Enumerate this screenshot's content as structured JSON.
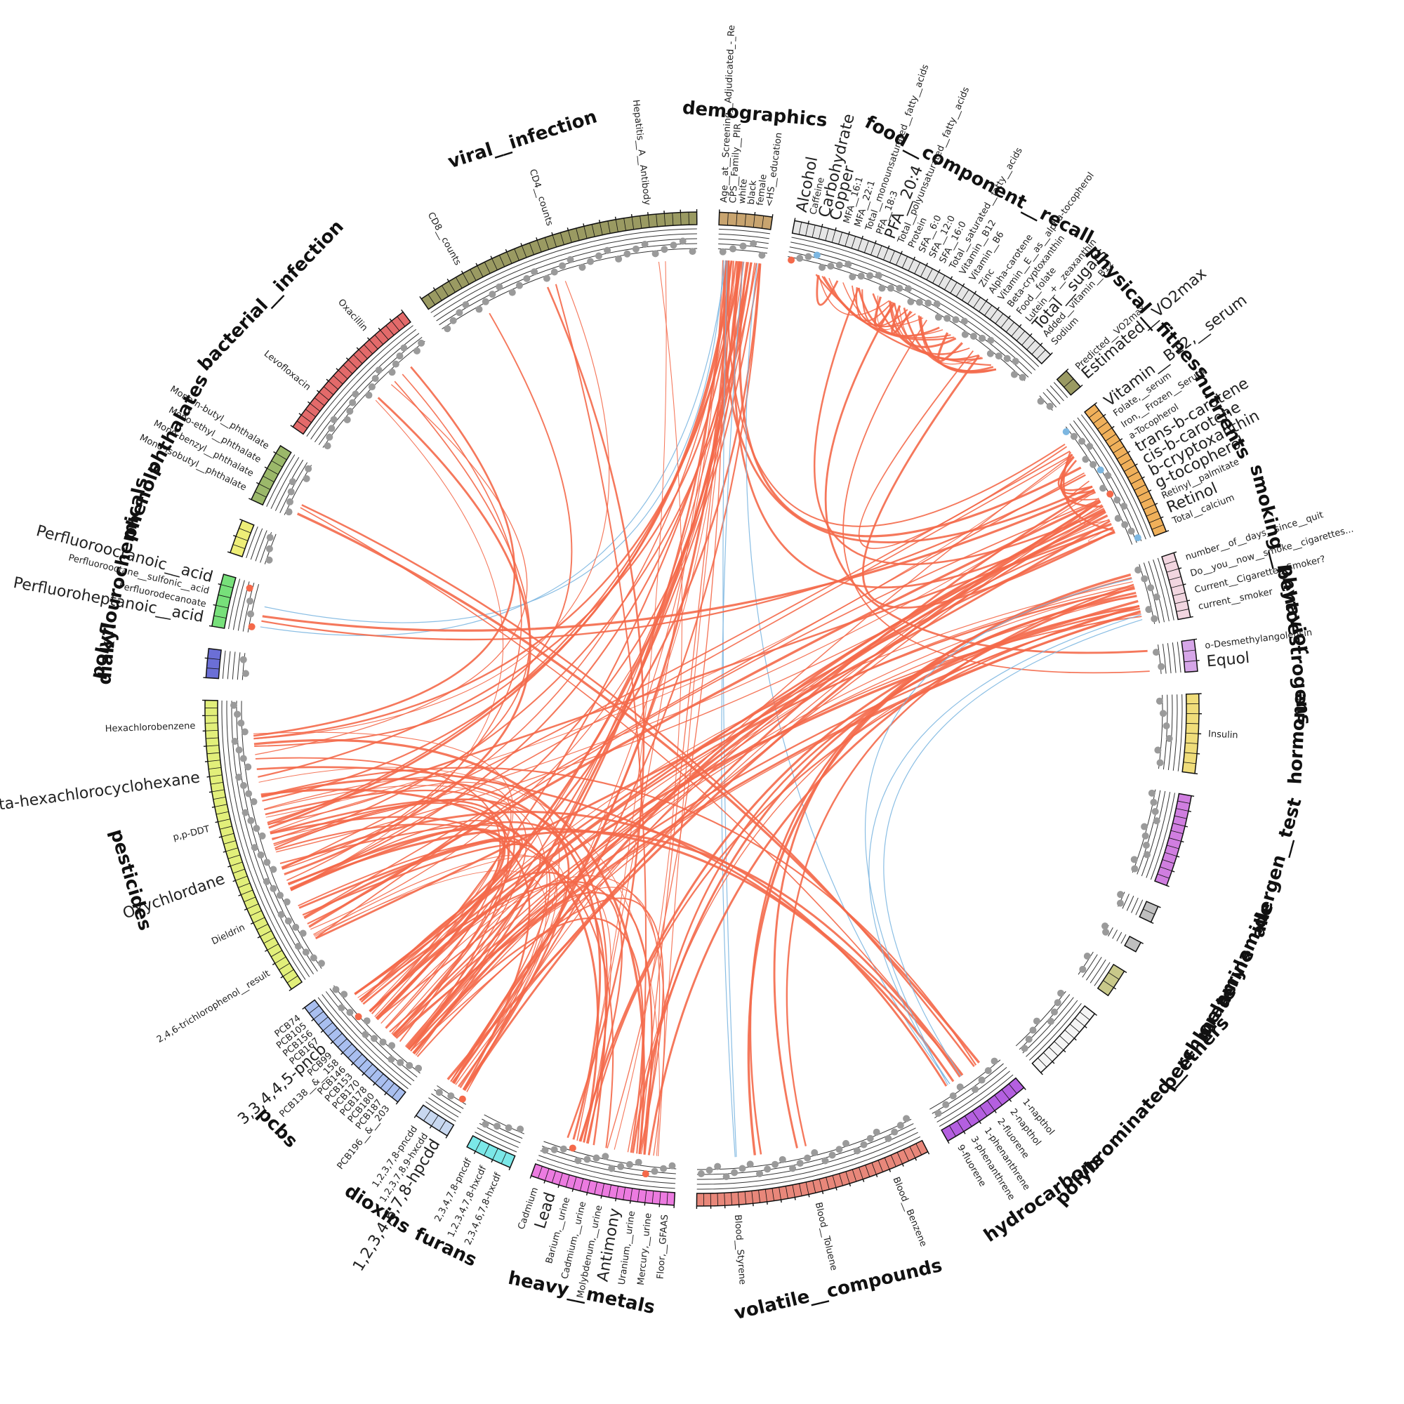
{
  "colors": {
    "positive": "#f4694a",
    "negative": "#7db7e1",
    "neutral_dot": "#9a9a9a",
    "axis": "#111111"
  },
  "groups": [
    {
      "name": "demographics",
      "color": "#c8a46f",
      "span": 4,
      "ticks": 6,
      "labels": [
        {
          "text": "Age__at__Screening__Adjudicated_-_Re",
          "color": "default"
        },
        {
          "text": "CPS__Family__PIR",
          "color": "default"
        },
        {
          "text": "white",
          "color": "default"
        },
        {
          "text": "black",
          "color": "default"
        },
        {
          "text": "female",
          "color": "default"
        },
        {
          "text": "<HS__education",
          "color": "default"
        }
      ]
    },
    {
      "name": "food__component__recall",
      "color": "#e6e6e6",
      "span": 22,
      "ticks": 42,
      "labels": [
        {
          "text": "Alcohol",
          "color": "positive"
        },
        {
          "text": "Caffeine",
          "color": "default"
        },
        {
          "text": "Carbohydrate",
          "color": "negative"
        },
        {
          "text": "Copper",
          "color": "negative"
        },
        {
          "text": "MFA__16:1",
          "color": "default"
        },
        {
          "text": "MFA__22:1",
          "color": "default"
        },
        {
          "text": "Total__monounsaturated__fatty__acids",
          "color": "default"
        },
        {
          "text": "PFA__18:3",
          "color": "default"
        },
        {
          "text": "PFA__20:4",
          "color": "positive"
        },
        {
          "text": "Total__polyunsaturated__fatty__acids",
          "color": "default"
        },
        {
          "text": "Protein",
          "color": "default"
        },
        {
          "text": "SFA__6:0",
          "color": "default"
        },
        {
          "text": "SFA__12:0",
          "color": "default"
        },
        {
          "text": "SFA__16:0",
          "color": "default"
        },
        {
          "text": "Total__saturated__fatty__acids",
          "color": "default"
        },
        {
          "text": "Vitamin__B12",
          "color": "default"
        },
        {
          "text": "Vitamin__B6",
          "color": "default"
        },
        {
          "text": "Zinc",
          "color": "default"
        },
        {
          "text": "Alpha-carotene",
          "color": "default"
        },
        {
          "text": "Vitamin__E__as__alpha-tocopherol",
          "color": "default"
        },
        {
          "text": "Beta-cryptoxanthin",
          "color": "default"
        },
        {
          "text": "Food__folate",
          "color": "default"
        },
        {
          "text": "Lutein__+__zeaxanthin",
          "color": "default"
        },
        {
          "text": "Total__sugars",
          "color": "negative"
        },
        {
          "text": "Added__vitamin__B12",
          "color": "default"
        },
        {
          "text": "Sodium",
          "color": "default"
        }
      ]
    },
    {
      "name": "physical__fitness",
      "color": "#9a9a63",
      "span": 1.6,
      "ticks": 2,
      "labels": [
        {
          "text": "Predicted__VO2max",
          "color": "default"
        },
        {
          "text": "Estimated__VO2max",
          "color": "negative"
        }
      ]
    },
    {
      "name": "nutrients",
      "color": "#f0b05a",
      "span": 11,
      "ticks": 20,
      "labels": [
        {
          "text": "Vitamin__B12,__serum",
          "color": "negative"
        },
        {
          "text": "Folate,__serum",
          "color": "default"
        },
        {
          "text": "Iron,__Frozen__Serum",
          "color": "default"
        },
        {
          "text": "a-Tocopherol",
          "color": "default"
        },
        {
          "text": "trans-b-carotene",
          "color": "negative"
        },
        {
          "text": "cis-b-carotene",
          "color": "negative"
        },
        {
          "text": "b-cryptoxanthin",
          "color": "negative"
        },
        {
          "text": "g-tocopherol",
          "color": "positive"
        },
        {
          "text": "Retinyl__palmitate",
          "color": "default"
        },
        {
          "text": "Retinol",
          "color": "positive"
        },
        {
          "text": "Total__calcium",
          "color": "default"
        }
      ]
    },
    {
      "name": "smoking__behavior",
      "color": "#f2d6e0",
      "span": 5,
      "ticks": 8,
      "labels": [
        {
          "text": "number__of__days__since__quit",
          "color": "default"
        },
        {
          "text": "Do__you__now__smoke__cigarettes...",
          "color": "default"
        },
        {
          "text": "Current__Cigarette__Smoker?",
          "color": "default"
        },
        {
          "text": "current__smoker",
          "color": "default"
        }
      ]
    },
    {
      "name": "phytoestrogens",
      "color": "#d6a6e8",
      "span": 2.4,
      "ticks": 3,
      "labels": [
        {
          "text": "o-Desmethylangolensin",
          "color": "default"
        },
        {
          "text": "Equol",
          "color": "negative"
        }
      ]
    },
    {
      "name": "hormone",
      "color": "#f0dd7a",
      "span": 6,
      "ticks": 8,
      "labels": [
        {
          "text": "Insulin",
          "color": "default"
        }
      ]
    },
    {
      "name": "allergen__test",
      "color": "#d07ee0",
      "span": 7,
      "ticks": 12,
      "labels": []
    },
    {
      "name": "acrylamide",
      "color": "#bfbfbf",
      "span": 1.3,
      "ticks": 2,
      "labels": []
    },
    {
      "name": "melamine",
      "color": "#bfbfbf",
      "span": 0.8,
      "ticks": 1,
      "labels": []
    },
    {
      "name": "perchlorate",
      "color": "#c9c98a",
      "span": 2.2,
      "ticks": 3,
      "labels": []
    },
    {
      "name": "polybrominated__ethers",
      "color": "#f5f5f5",
      "span": 6,
      "ticks": 10,
      "labels": []
    },
    {
      "name": "hydrocarbons",
      "color": "#b45fe0",
      "span": 7,
      "ticks": 10,
      "labels": [
        {
          "text": "1-napthol",
          "color": "default"
        },
        {
          "text": "2-napthol",
          "color": "default"
        },
        {
          "text": "2-fluorene",
          "color": "default"
        },
        {
          "text": "1-phenanthrene",
          "color": "default"
        },
        {
          "text": "3-phenanthrene",
          "color": "default"
        },
        {
          "text": "9-fluorene",
          "color": "default"
        }
      ]
    },
    {
      "name": "volatile__compounds",
      "color": "#e8877a",
      "span": 18,
      "ticks": 34,
      "labels": [
        {
          "text": "Blood__Benzene",
          "color": "default"
        },
        {
          "text": "Blood__Toluene",
          "color": "default"
        },
        {
          "text": "Blood__Styrene",
          "color": "default"
        }
      ]
    },
    {
      "name": "heavy__metals",
      "color": "#ec7be0",
      "span": 11,
      "ticks": 20,
      "labels": [
        {
          "text": "Floor,__GFAAS",
          "color": "default"
        },
        {
          "text": "Mercury,__urine",
          "color": "default"
        },
        {
          "text": "Uranium,__urine",
          "color": "default"
        },
        {
          "text": "Antimony",
          "color": "positive"
        },
        {
          "text": "Molybdenum,__urine",
          "color": "default"
        },
        {
          "text": "Cadmium,__urine",
          "color": "default"
        },
        {
          "text": "Barium,__urine",
          "color": "default"
        },
        {
          "text": "Lead",
          "color": "positive"
        },
        {
          "text": "Cadmium",
          "color": "default"
        }
      ]
    },
    {
      "name": "furans",
      "color": "#7be8e8",
      "span": 3.6,
      "ticks": 5,
      "labels": [
        {
          "text": "2,3,4,6,7,8-hxcdf",
          "color": "default"
        },
        {
          "text": "1,2,3,4,7,8-hxcdf",
          "color": "default"
        },
        {
          "text": "2,3,4,7,8-pncdf",
          "color": "default"
        }
      ]
    },
    {
      "name": "dioxins",
      "color": "#c8d8f0",
      "span": 2.8,
      "ticks": 4,
      "labels": [
        {
          "text": "1,2,3,4,6,7,8-hpcdd",
          "color": "positive"
        },
        {
          "text": "1,2,3,7,8,9-hxcdd",
          "color": "default"
        },
        {
          "text": "1,2,3,7,8-pncdd",
          "color": "default"
        }
      ]
    },
    {
      "name": "pcbs",
      "color": "#a9bff0",
      "span": 10,
      "ticks": 18,
      "labels": [
        {
          "text": "PCB196__&__203",
          "color": "default"
        },
        {
          "text": "PCB187",
          "color": "default"
        },
        {
          "text": "PCB180",
          "color": "default"
        },
        {
          "text": "PCB178",
          "color": "default"
        },
        {
          "text": "PCB170",
          "color": "default"
        },
        {
          "text": "PCB153",
          "color": "default"
        },
        {
          "text": "PCB146",
          "color": "default"
        },
        {
          "text": "PCB138__&__158",
          "color": "default"
        },
        {
          "text": "PCB99",
          "color": "default"
        },
        {
          "text": "3,3,4,4,5-pncb",
          "color": "positive"
        },
        {
          "text": "PCB167",
          "color": "default"
        },
        {
          "text": "PCB156",
          "color": "default"
        },
        {
          "text": "PCB105",
          "color": "default"
        },
        {
          "text": "PCB74",
          "color": "default"
        }
      ]
    },
    {
      "name": "pesticides",
      "color": "#e2ef7a",
      "span": 23,
      "ticks": 40,
      "labels": [
        {
          "text": "2,4,6-trichlorophenol__result",
          "color": "default"
        },
        {
          "text": "Dieldrin",
          "color": "default"
        },
        {
          "text": "Oxychlordane",
          "color": "positive"
        },
        {
          "text": "p,p-DDT",
          "color": "default"
        },
        {
          "text": "Beta-hexachlorocyclohexane",
          "color": "positive"
        },
        {
          "text": "Hexachlorobenzene",
          "color": "default"
        }
      ]
    },
    {
      "name": "diakyl",
      "color": "#6b6fd6",
      "span": 2.2,
      "ticks": 3,
      "labels": []
    },
    {
      "name": "polyflourochemicals",
      "color": "#77e07a",
      "span": 4,
      "ticks": 5,
      "labels": [
        {
          "text": "Perfluoroheptanoic__acid",
          "color": "positive"
        },
        {
          "text": "Perfluorodecanoate",
          "color": "default"
        },
        {
          "text": "Perfluorooctane__sulfonic__acid",
          "color": "default"
        },
        {
          "text": "Perfluorooctanoic__acid",
          "color": "positive"
        }
      ]
    },
    {
      "name": "phenols",
      "color": "#eeee77",
      "span": 2.6,
      "ticks": 4,
      "labels": []
    },
    {
      "name": "phthalates",
      "color": "#9bb86a",
      "span": 4.6,
      "ticks": 7,
      "labels": [
        {
          "text": "Mono-isobutyl__phthalate",
          "color": "default"
        },
        {
          "text": "Mono-benzyl__phthalate",
          "color": "default"
        },
        {
          "text": "Mono-ethyl__phthalate",
          "color": "default"
        },
        {
          "text": "Mono-n-butyl__phthalate",
          "color": "default"
        }
      ]
    },
    {
      "name": "bacterial__infection",
      "color": "#e36a6a",
      "span": 12,
      "ticks": 22,
      "labels": [
        {
          "text": "Levofloxacin",
          "color": "default"
        },
        {
          "text": "Oxacillin",
          "color": "default"
        }
      ]
    },
    {
      "name": "viral__infection",
      "color": "#9a9a62",
      "span": 22,
      "ticks": 36,
      "labels": [
        {
          "text": "CD8__counts",
          "color": "default"
        },
        {
          "text": "CD4__counts",
          "color": "default"
        },
        {
          "text": "Hepatitis__A__Antibody",
          "color": "default"
        }
      ]
    }
  ],
  "links": [
    {
      "from": "demographics",
      "to": "pesticides",
      "sign": "positive",
      "count": 10
    },
    {
      "from": "demographics",
      "to": "pcbs",
      "sign": "positive",
      "count": 8
    },
    {
      "from": "demographics",
      "to": "dioxins",
      "sign": "positive",
      "count": 4
    },
    {
      "from": "demographics",
      "to": "heavy__metals",
      "sign": "positive",
      "count": 4
    },
    {
      "from": "demographics",
      "to": "nutrients",
      "sign": "positive",
      "count": 4
    },
    {
      "from": "demographics",
      "to": "polyflourochemicals",
      "sign": "negative",
      "count": 2
    },
    {
      "from": "demographics",
      "to": "volatile__compounds",
      "sign": "negative",
      "count": 2
    },
    {
      "from": "demographics",
      "to": "hydrocarbons",
      "sign": "negative",
      "count": 1
    },
    {
      "from": "food__component__recall",
      "to": "food__component__recall",
      "sign": "positive",
      "count": 24
    },
    {
      "from": "food__component__recall",
      "to": "nutrients",
      "sign": "positive",
      "count": 3
    },
    {
      "from": "food__component__recall",
      "to": "phytoestrogens",
      "sign": "positive",
      "count": 2
    },
    {
      "from": "pesticides",
      "to": "pcbs",
      "sign": "positive",
      "count": 12
    },
    {
      "from": "pesticides",
      "to": "nutrients",
      "sign": "positive",
      "count": 10
    },
    {
      "from": "pesticides",
      "to": "hydrocarbons",
      "sign": "positive",
      "count": 5
    },
    {
      "from": "pesticides",
      "to": "heavy__metals",
      "sign": "positive",
      "count": 6
    },
    {
      "from": "pesticides",
      "to": "dioxins",
      "sign": "positive",
      "count": 8
    },
    {
      "from": "pesticides",
      "to": "bacterial__infection",
      "sign": "positive",
      "count": 6
    },
    {
      "from": "pcbs",
      "to": "smoking__behavior",
      "sign": "positive",
      "count": 10
    },
    {
      "from": "pcbs",
      "to": "nutrients",
      "sign": "positive",
      "count": 8
    },
    {
      "from": "pcbs",
      "to": "heavy__metals",
      "sign": "positive",
      "count": 8
    },
    {
      "from": "dioxins",
      "to": "nutrients",
      "sign": "positive",
      "count": 6
    },
    {
      "from": "heavy__metals",
      "to": "smoking__behavior",
      "sign": "positive",
      "count": 6
    },
    {
      "from": "heavy__metals",
      "to": "viral__infection",
      "sign": "positive",
      "count": 4
    },
    {
      "from": "volatile__compounds",
      "to": "smoking__behavior",
      "sign": "positive",
      "count": 4
    },
    {
      "from": "hydrocarbons",
      "to": "phthalates",
      "sign": "positive",
      "count": 3
    },
    {
      "from": "smoking__behavior",
      "to": "hydrocarbons",
      "sign": "negative",
      "count": 3
    },
    {
      "from": "polyflourochemicals",
      "to": "nutrients",
      "sign": "positive",
      "count": 2
    },
    {
      "from": "nutrients",
      "to": "nutrients",
      "sign": "positive",
      "count": 8
    },
    {
      "from": "viral__infection",
      "to": "pesticides",
      "sign": "positive",
      "count": 2
    }
  ]
}
